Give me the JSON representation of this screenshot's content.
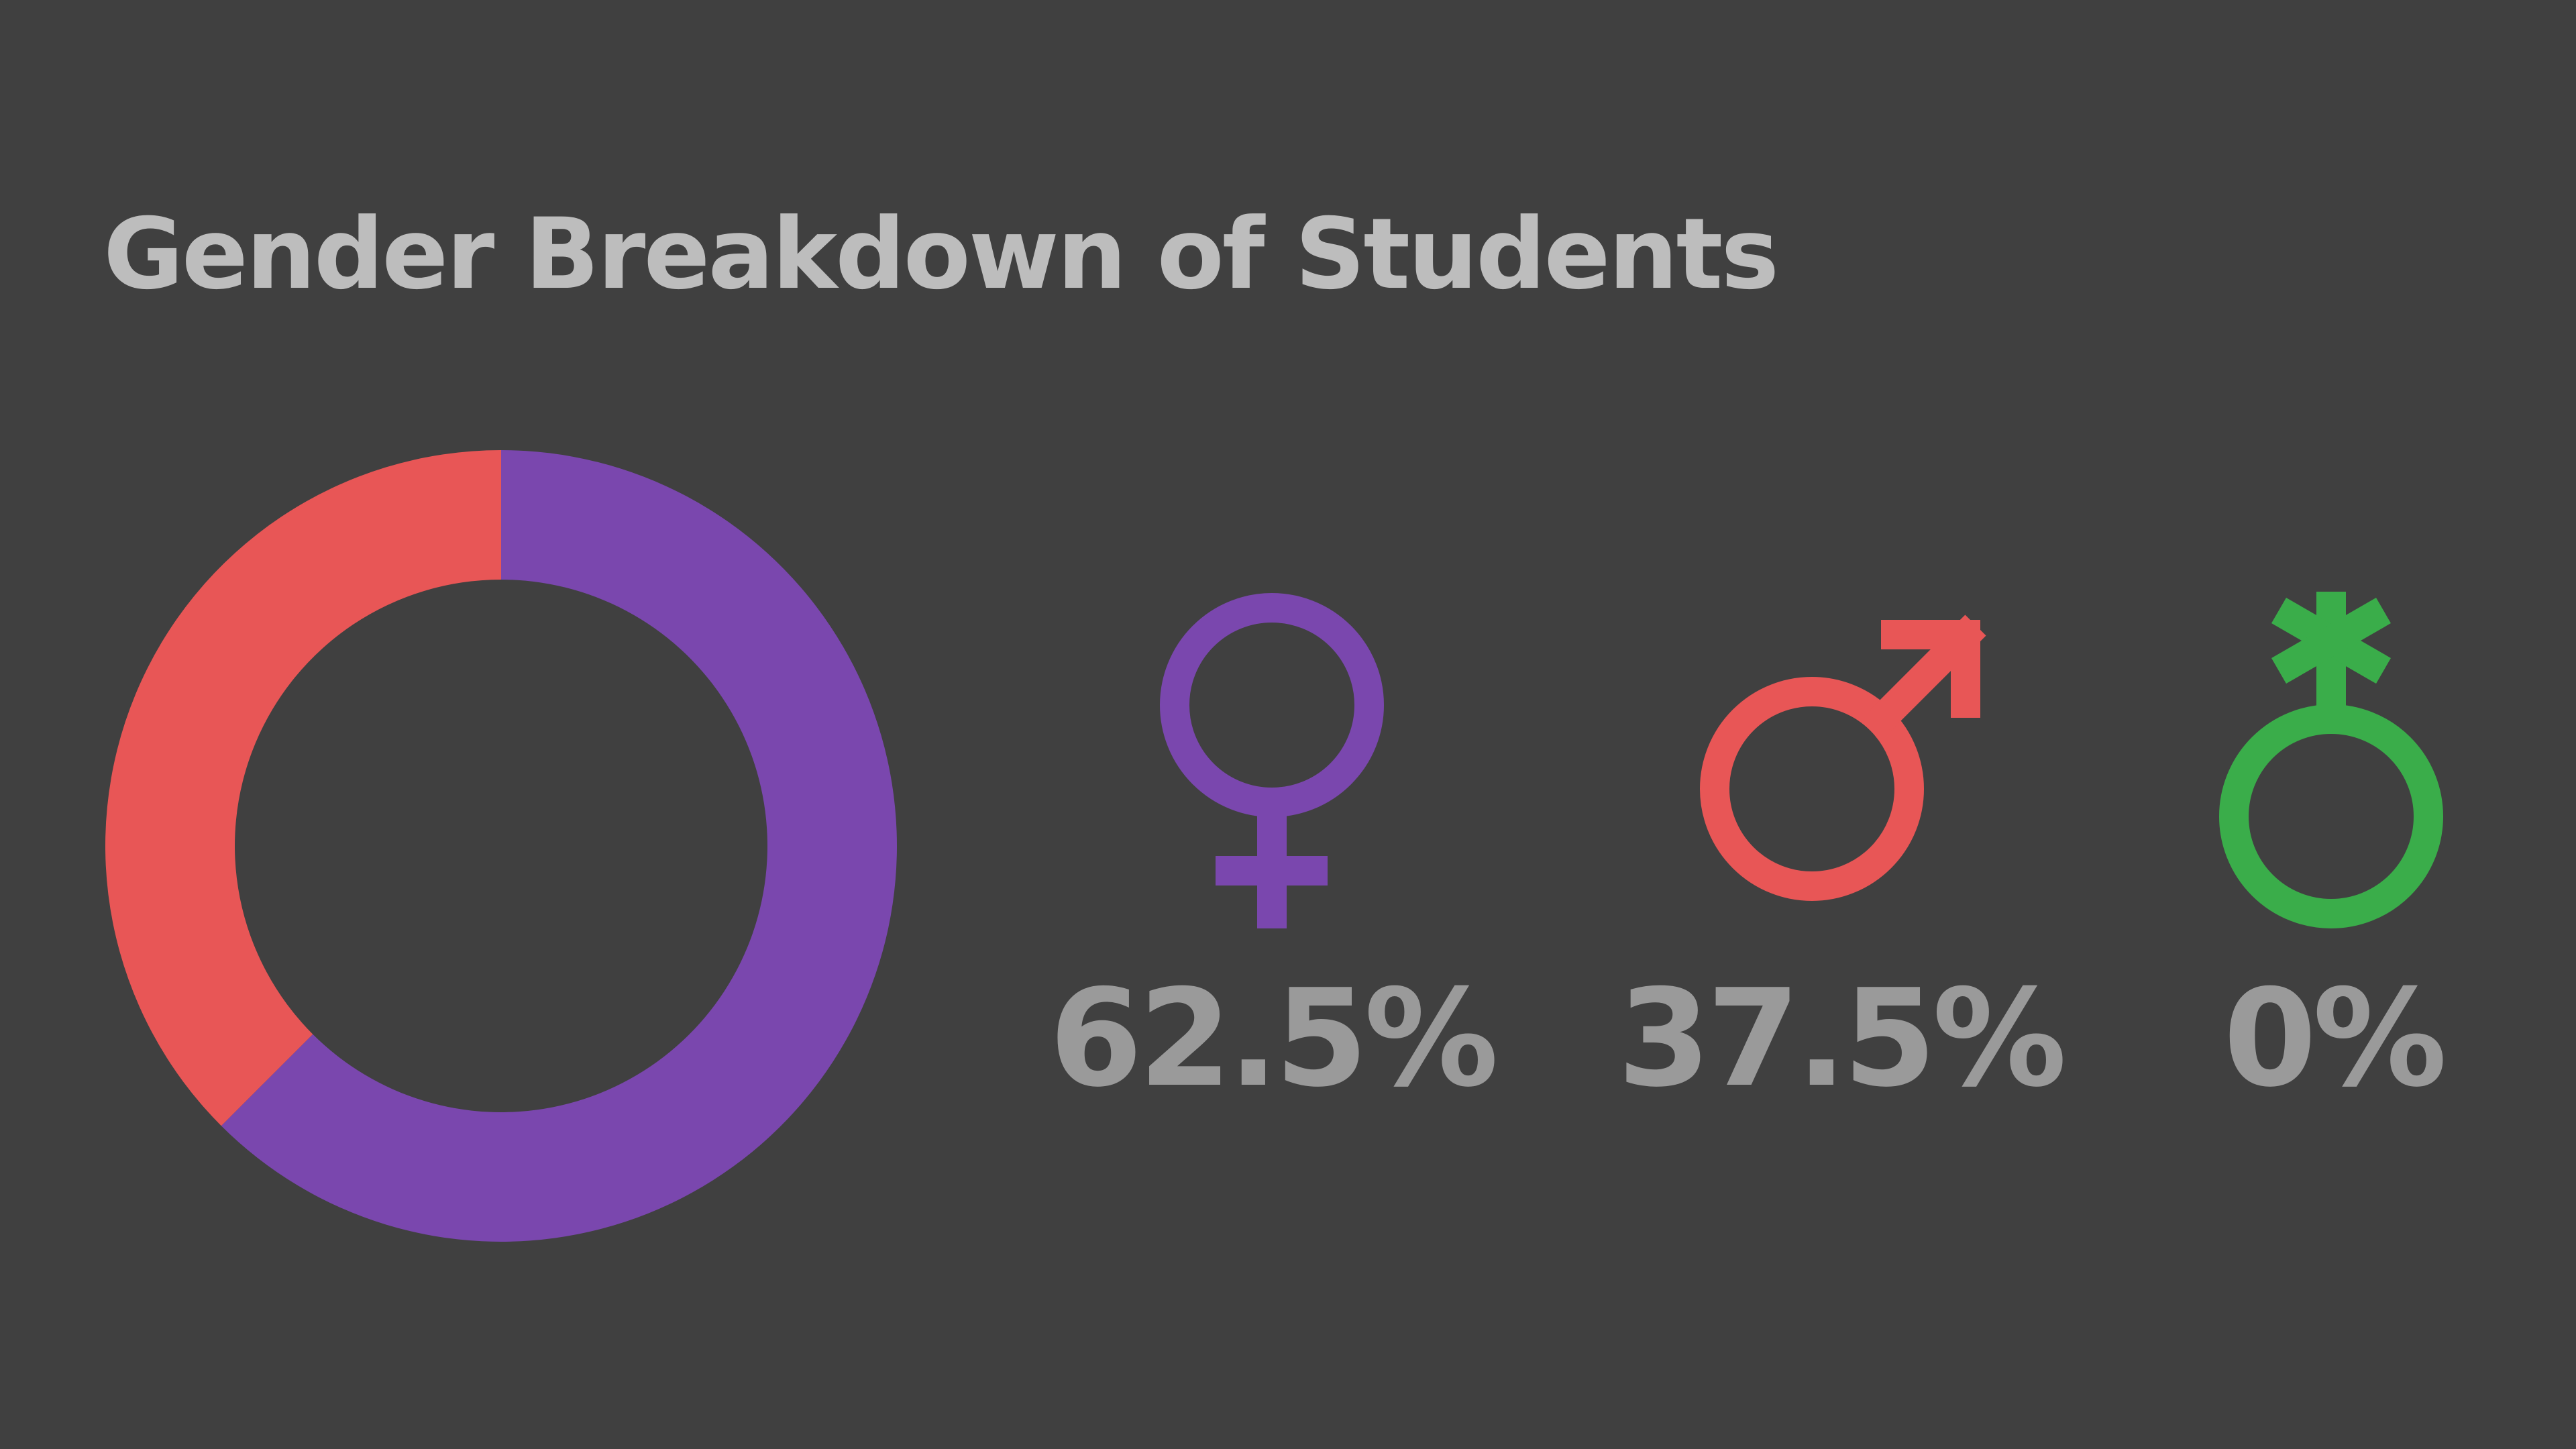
{
  "chart_data": {
    "type": "pie",
    "title": "Gender Breakdown of Students",
    "values": [
      62.5,
      37.5,
      0
    ],
    "value_labels": [
      "62.5%",
      "37.5%",
      "0%"
    ],
    "colors": [
      "#7a47ae",
      "#e85656",
      "#3aad4a"
    ],
    "donut": true
  }
}
